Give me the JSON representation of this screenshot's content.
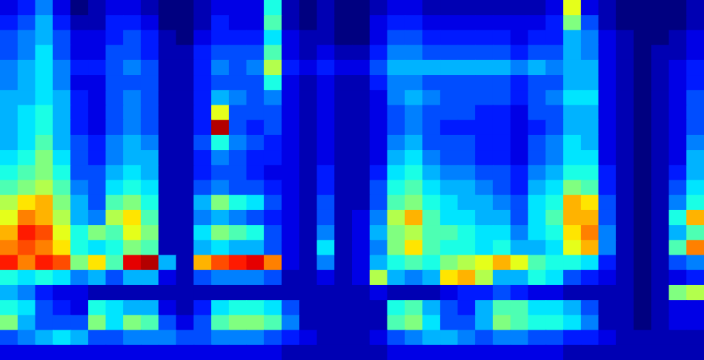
{
  "chart_data": {
    "type": "heatmap",
    "tick_labels": false,
    "xlim": [
      0,
      40
    ],
    "ylim": [
      0,
      24
    ],
    "zlim": [
      0,
      1
    ],
    "z": [
      [
        0.1,
        0.15,
        0.25,
        0.1,
        0,
        0.05,
        0.1,
        0.1,
        0.05,
        0,
        0,
        0.05,
        0.1,
        0.1,
        0.1,
        0.4,
        0.05,
        0,
        0.05,
        0,
        0,
        0.05,
        0.1,
        0.1,
        0.05,
        0.05,
        0.05,
        0.05,
        0.05,
        0.05,
        0.05,
        0.1,
        0.6,
        0.1,
        0.05,
        0,
        0,
        0,
        0,
        0.05
      ],
      [
        0.15,
        0.2,
        0.3,
        0.15,
        0.05,
        0.05,
        0.15,
        0.15,
        0.1,
        0,
        0,
        0.05,
        0.15,
        0.1,
        0.1,
        0.45,
        0.05,
        0,
        0.05,
        0,
        0,
        0.1,
        0.15,
        0.15,
        0.1,
        0.1,
        0.1,
        0.1,
        0.1,
        0.1,
        0.1,
        0.15,
        0.5,
        0.2,
        0.05,
        0,
        0,
        0,
        0,
        0.05
      ],
      [
        0.2,
        0.25,
        0.3,
        0.2,
        0.1,
        0.1,
        0.15,
        0.2,
        0.15,
        0.05,
        0,
        0.1,
        0.15,
        0.15,
        0.15,
        0.35,
        0.1,
        0.05,
        0.05,
        0,
        0,
        0.1,
        0.2,
        0.2,
        0.15,
        0.15,
        0.15,
        0.15,
        0.15,
        0.1,
        0.15,
        0.15,
        0.3,
        0.25,
        0.1,
        0.05,
        0,
        0,
        0.05,
        0.1
      ],
      [
        0.2,
        0.25,
        0.35,
        0.2,
        0.1,
        0.1,
        0.2,
        0.2,
        0.15,
        0.05,
        0.05,
        0.15,
        0.2,
        0.2,
        0.2,
        0.45,
        0.1,
        0.05,
        0.1,
        0.05,
        0.05,
        0.15,
        0.25,
        0.25,
        0.2,
        0.2,
        0.2,
        0.2,
        0.2,
        0.15,
        0.2,
        0.2,
        0.3,
        0.25,
        0.1,
        0.05,
        0,
        0.05,
        0.05,
        0.1
      ],
      [
        0.25,
        0.3,
        0.35,
        0.25,
        0.15,
        0.15,
        0.2,
        0.25,
        0.2,
        0.05,
        0.05,
        0.15,
        0.25,
        0.2,
        0.25,
        0.55,
        0.15,
        0.1,
        0.15,
        0.1,
        0.1,
        0.2,
        0.3,
        0.3,
        0.3,
        0.3,
        0.3,
        0.3,
        0.3,
        0.25,
        0.3,
        0.25,
        0.3,
        0.3,
        0.1,
        0.05,
        0,
        0.05,
        0.1,
        0.15
      ],
      [
        0.25,
        0.3,
        0.35,
        0.25,
        0.1,
        0.1,
        0.2,
        0.2,
        0.2,
        0.05,
        0.05,
        0.15,
        0.2,
        0.2,
        0.2,
        0.4,
        0.1,
        0.05,
        0.1,
        0.05,
        0.05,
        0.15,
        0.25,
        0.25,
        0.2,
        0.2,
        0.2,
        0.2,
        0.2,
        0.15,
        0.2,
        0.2,
        0.3,
        0.3,
        0.1,
        0.05,
        0,
        0.05,
        0.1,
        0.15
      ],
      [
        0.3,
        0.3,
        0.35,
        0.3,
        0.15,
        0.1,
        0.2,
        0.25,
        0.2,
        0.05,
        0.05,
        0.15,
        0.3,
        0.25,
        0.2,
        0.25,
        0.1,
        0.05,
        0.1,
        0.05,
        0.05,
        0.1,
        0.25,
        0.3,
        0.25,
        0.2,
        0.2,
        0.2,
        0.2,
        0.15,
        0.2,
        0.25,
        0.35,
        0.35,
        0.1,
        0.05,
        0,
        0.05,
        0.1,
        0.2
      ],
      [
        0.3,
        0.35,
        0.4,
        0.3,
        0.15,
        0.1,
        0.2,
        0.25,
        0.2,
        0.05,
        0.05,
        0.15,
        0.6,
        0.2,
        0.2,
        0.2,
        0.1,
        0.05,
        0.1,
        0.05,
        0.05,
        0.1,
        0.2,
        0.25,
        0.2,
        0.2,
        0.2,
        0.15,
        0.15,
        0.1,
        0.2,
        0.2,
        0.3,
        0.3,
        0.1,
        0.05,
        0,
        0.05,
        0.1,
        0.2
      ],
      [
        0.3,
        0.35,
        0.4,
        0.3,
        0.15,
        0.1,
        0.2,
        0.25,
        0.2,
        0.05,
        0.05,
        0.15,
        0.95,
        0.2,
        0.15,
        0.2,
        0.1,
        0.05,
        0.1,
        0.05,
        0.05,
        0.1,
        0.2,
        0.25,
        0.2,
        0.15,
        0.15,
        0.15,
        0.15,
        0.1,
        0.15,
        0.2,
        0.3,
        0.3,
        0.1,
        0.05,
        0,
        0.05,
        0.1,
        0.2
      ],
      [
        0.3,
        0.35,
        0.45,
        0.3,
        0.2,
        0.15,
        0.25,
        0.3,
        0.25,
        0.05,
        0.05,
        0.2,
        0.4,
        0.25,
        0.2,
        0.15,
        0.1,
        0.05,
        0.1,
        0.05,
        0.05,
        0.1,
        0.25,
        0.3,
        0.2,
        0.2,
        0.2,
        0.15,
        0.15,
        0.1,
        0.2,
        0.25,
        0.35,
        0.3,
        0.1,
        0.05,
        0,
        0.05,
        0.1,
        0.25
      ],
      [
        0.35,
        0.4,
        0.5,
        0.35,
        0.2,
        0.15,
        0.25,
        0.3,
        0.3,
        0.05,
        0.05,
        0.15,
        0.25,
        0.2,
        0.15,
        0.15,
        0.1,
        0.05,
        0.1,
        0.05,
        0.05,
        0.1,
        0.3,
        0.35,
        0.25,
        0.2,
        0.2,
        0.15,
        0.15,
        0.1,
        0.2,
        0.25,
        0.35,
        0.35,
        0.1,
        0.05,
        0,
        0.05,
        0.1,
        0.3
      ],
      [
        0.4,
        0.45,
        0.5,
        0.4,
        0.2,
        0.2,
        0.3,
        0.35,
        0.3,
        0.05,
        0.05,
        0.15,
        0.2,
        0.2,
        0.15,
        0.1,
        0.1,
        0.05,
        0.15,
        0.05,
        0.05,
        0.15,
        0.35,
        0.4,
        0.3,
        0.25,
        0.25,
        0.2,
        0.2,
        0.15,
        0.25,
        0.3,
        0.4,
        0.4,
        0.15,
        0.05,
        0,
        0.05,
        0.15,
        0.3
      ],
      [
        0.45,
        0.5,
        0.55,
        0.45,
        0.25,
        0.2,
        0.35,
        0.4,
        0.35,
        0.05,
        0.05,
        0.2,
        0.25,
        0.2,
        0.2,
        0.15,
        0.1,
        0.05,
        0.15,
        0.05,
        0.05,
        0.2,
        0.4,
        0.45,
        0.35,
        0.3,
        0.3,
        0.25,
        0.2,
        0.15,
        0.3,
        0.35,
        0.5,
        0.45,
        0.15,
        0.05,
        0,
        0.05,
        0.2,
        0.35
      ],
      [
        0.55,
        0.65,
        0.7,
        0.5,
        0.3,
        0.2,
        0.45,
        0.5,
        0.4,
        0.05,
        0.05,
        0.3,
        0.5,
        0.4,
        0.35,
        0.2,
        0.1,
        0.05,
        0.2,
        0.05,
        0.05,
        0.2,
        0.45,
        0.5,
        0.4,
        0.35,
        0.3,
        0.3,
        0.25,
        0.2,
        0.35,
        0.4,
        0.7,
        0.65,
        0.2,
        0.05,
        0,
        0.05,
        0.25,
        0.4
      ],
      [
        0.6,
        0.75,
        0.7,
        0.55,
        0.3,
        0.25,
        0.55,
        0.65,
        0.45,
        0.05,
        0.05,
        0.25,
        0.3,
        0.25,
        0.2,
        0.15,
        0.1,
        0.05,
        0.2,
        0.05,
        0.1,
        0.25,
        0.55,
        0.7,
        0.45,
        0.35,
        0.35,
        0.3,
        0.3,
        0.2,
        0.35,
        0.45,
        0.7,
        0.7,
        0.2,
        0.05,
        0,
        0.05,
        0.4,
        0.7
      ],
      [
        0.7,
        0.85,
        0.8,
        0.6,
        0.4,
        0.5,
        0.45,
        0.6,
        0.5,
        0.05,
        0.05,
        0.35,
        0.5,
        0.45,
        0.4,
        0.2,
        0.1,
        0.05,
        0.25,
        0.05,
        0.1,
        0.3,
        0.5,
        0.55,
        0.45,
        0.45,
        0.4,
        0.35,
        0.35,
        0.25,
        0.35,
        0.4,
        0.65,
        0.75,
        0.25,
        0.05,
        0,
        0.05,
        0.3,
        0.45
      ],
      [
        0.75,
        0.8,
        0.75,
        0.65,
        0.4,
        0.35,
        0.4,
        0.5,
        0.45,
        0.05,
        0.05,
        0.3,
        0.35,
        0.3,
        0.3,
        0.2,
        0.1,
        0.05,
        0.35,
        0.05,
        0.1,
        0.25,
        0.5,
        0.65,
        0.45,
        0.4,
        0.4,
        0.35,
        0.4,
        0.3,
        0.3,
        0.35,
        0.6,
        0.7,
        0.25,
        0.05,
        0,
        0.05,
        0.45,
        0.75
      ],
      [
        0.85,
        0.75,
        0.85,
        0.8,
        0.5,
        0.65,
        0.45,
        0.9,
        0.95,
        0.3,
        0.05,
        0.7,
        0.8,
        0.85,
        0.9,
        0.75,
        0.1,
        0.05,
        0.25,
        0.05,
        0.1,
        0.3,
        0.4,
        0.45,
        0.4,
        0.5,
        0.55,
        0.6,
        0.7,
        0.6,
        0.45,
        0.4,
        0.4,
        0.35,
        0.15,
        0.05,
        0,
        0.05,
        0.2,
        0.25
      ],
      [
        0.4,
        0.35,
        0.4,
        0.35,
        0.25,
        0.3,
        0.2,
        0.3,
        0.3,
        0.1,
        0.05,
        0.2,
        0.25,
        0.25,
        0.25,
        0.2,
        0.05,
        0.05,
        0.1,
        0.05,
        0.1,
        0.55,
        0.3,
        0.25,
        0.3,
        0.65,
        0.7,
        0.55,
        0.3,
        0.3,
        0.4,
        0.35,
        0.2,
        0.15,
        0.1,
        0.05,
        0,
        0.05,
        0.1,
        0.15
      ],
      [
        0.3,
        0.25,
        0.15,
        0.1,
        0.1,
        0.05,
        0.05,
        0.05,
        0.05,
        0.05,
        0.05,
        0.05,
        0.05,
        0.05,
        0.05,
        0.05,
        0.05,
        0.05,
        0.05,
        0.05,
        0.05,
        0.1,
        0.05,
        0.05,
        0.05,
        0.1,
        0.15,
        0.15,
        0.2,
        0.15,
        0.1,
        0.1,
        0.05,
        0.05,
        0.05,
        0.05,
        0,
        0.05,
        0.5,
        0.55
      ],
      [
        0.4,
        0.35,
        0.2,
        0.15,
        0.1,
        0.4,
        0.35,
        0.3,
        0.3,
        0.1,
        0.05,
        0.15,
        0.35,
        0.4,
        0.4,
        0.35,
        0.2,
        0.05,
        0.05,
        0.05,
        0.05,
        0.05,
        0.4,
        0.45,
        0.3,
        0.2,
        0.15,
        0.3,
        0.45,
        0.45,
        0.35,
        0.35,
        0.3,
        0.2,
        0.05,
        0.05,
        0,
        0.05,
        0.1,
        0.1
      ],
      [
        0.5,
        0.3,
        0.2,
        0.2,
        0.2,
        0.5,
        0.35,
        0.5,
        0.45,
        0.2,
        0.1,
        0.2,
        0.45,
        0.5,
        0.5,
        0.45,
        0.25,
        0.05,
        0.05,
        0.05,
        0.05,
        0.05,
        0.45,
        0.5,
        0.35,
        0.2,
        0.2,
        0.3,
        0.5,
        0.45,
        0.4,
        0.4,
        0.35,
        0.25,
        0.05,
        0.05,
        0,
        0.05,
        0.1,
        0.1
      ],
      [
        0.2,
        0.25,
        0.3,
        0.35,
        0.3,
        0.2,
        0.2,
        0.25,
        0.25,
        0.25,
        0.2,
        0.2,
        0.25,
        0.25,
        0.25,
        0.2,
        0.15,
        0.1,
        0.05,
        0.05,
        0.05,
        0.1,
        0.2,
        0.25,
        0.3,
        0.3,
        0.25,
        0.2,
        0.25,
        0.25,
        0.2,
        0.2,
        0.15,
        0.15,
        0.1,
        0.05,
        0.05,
        0.05,
        0.05,
        0.05
      ],
      [
        0.1,
        0.1,
        0.1,
        0.1,
        0.1,
        0.1,
        0.1,
        0.1,
        0.1,
        0.1,
        0.1,
        0.1,
        0.1,
        0.1,
        0.1,
        0.1,
        0.05,
        0.05,
        0.05,
        0.05,
        0.05,
        0.05,
        0.1,
        0.1,
        0.1,
        0.1,
        0.1,
        0.1,
        0.1,
        0.1,
        0.1,
        0.1,
        0.05,
        0.05,
        0.05,
        0.05,
        0.05,
        0.05,
        0.05,
        0.05
      ]
    ]
  }
}
